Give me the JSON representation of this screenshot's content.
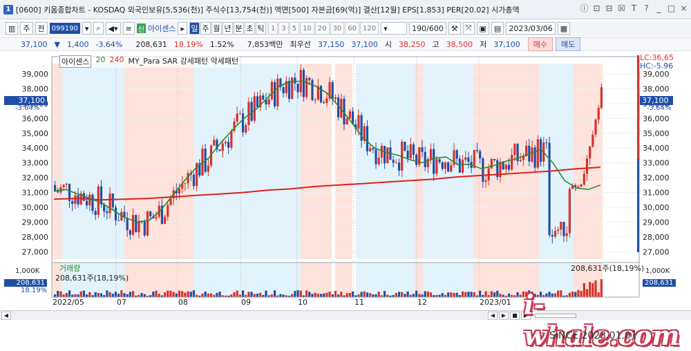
{
  "titlebar": {
    "number": "1",
    "text": "[0600] 키움종합차트 - KOSDAQ 외국인보유[5,536(천)] 주식수[13,754(천)] 액면[500] 자본금[69(억)] 결산[12월] EPS[1,853] PER[20.02] 시가총액",
    "buttons": [
      "ⓘ",
      "⊡",
      "⊟",
      "☒",
      "T",
      "?",
      "_",
      "□",
      "×"
    ]
  },
  "toolbar": {
    "week": "주",
    "all": "전",
    "code": "099190",
    "badge": "신",
    "name": "아이센스",
    "periods": [
      "일",
      "주",
      "월",
      "년",
      "분",
      "초",
      "틱"
    ],
    "active_period": "일",
    "nums": [
      "1",
      "3",
      "5",
      "10",
      "20",
      "30",
      "60",
      "120"
    ],
    "count": "190/600",
    "date": "2023/03/06"
  },
  "quote": {
    "price": "37,100",
    "change": "1,400",
    "change_pct": "-3.64%",
    "volume": "208,631",
    "turnover": "18.19%",
    "rate": "1.52%",
    "amount": "7,853백만",
    "best_label": "최우선",
    "best1": "37,150",
    "best2": "37,100",
    "open_label": "시",
    "open": "38,250",
    "high_label": "고",
    "high": "38,500",
    "low_label": "저",
    "low": "37,100",
    "buy": "매수",
    "sell": "매도"
  },
  "legend": {
    "name": "아이센스",
    "ma20": "20",
    "ma240": "240",
    "indicator": "MY_Para SAR 강세패턴 약세패턴"
  },
  "right_labels": {
    "lc": "LC:36,65",
    "hc": "HC:-5.96",
    "price": "37,100",
    "pct": "-3.64%"
  },
  "left_labels": {
    "price": "37,100",
    "pct": "-3.64%",
    "vol_value": "208,631",
    "vol_pct": "18.19%"
  },
  "volume": {
    "label": "거래량",
    "value_text": "208,631주(18,19%)",
    "right_text": "208,631주(18,19%)",
    "axis": "1,000K"
  },
  "watermark": "i-whale.com",
  "since": "SINCE 2023.01.01",
  "chart_data": {
    "type": "candlestick",
    "y_ticks": [
      "39,000",
      "38,000",
      "37,000",
      "36,000",
      "35,000",
      "34,000",
      "33,000",
      "32,000",
      "31,000",
      "30,000",
      "29,000",
      "28,000",
      "27,000"
    ],
    "x_ticks": [
      "2022/05",
      "07",
      "08",
      "09",
      "10",
      "11",
      "12",
      "2023/01"
    ],
    "ylim": [
      26500,
      39700
    ],
    "ma20_series": [
      31100,
      31200,
      30900,
      30600,
      30300,
      29800,
      29300,
      29000,
      29100,
      29800,
      30800,
      31800,
      32700,
      33300,
      34300,
      35200,
      36000,
      36600,
      37400,
      38200,
      38500,
      38500,
      38200,
      37700,
      36800,
      35800,
      34700,
      34000,
      33700,
      33500,
      33200,
      33000,
      33300,
      33400,
      32900,
      32900,
      32600,
      32800,
      33100,
      33300,
      33600,
      33900,
      33000,
      31800,
      31300,
      31200,
      31500
    ],
    "ma240_series": [
      30550,
      30600,
      30500,
      30550,
      30600,
      30700,
      30800,
      30900,
      31000,
      31150,
      31250,
      31400,
      31500,
      31600,
      31700,
      31800,
      31900,
      32050,
      32150,
      32250,
      32350,
      32450,
      32600,
      32700
    ],
    "colors": {
      "up": "#d8312a",
      "down": "#1f4ea8",
      "ma20": "#2a8a2a",
      "ma240": "#e01e1e"
    }
  }
}
